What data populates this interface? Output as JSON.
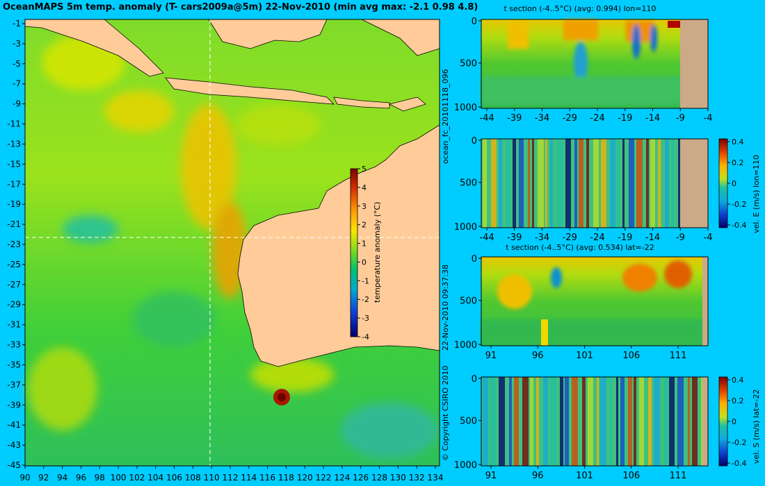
{
  "title": "OceanMAPS 5m temp. anomaly (T- cars2009a@5m) 22-Nov-2010 (min avg max: -2.1 0.98 4.8)",
  "map": {
    "lat_ticks": [
      "-1",
      "-3",
      "-5",
      "-7",
      "-9",
      "-11",
      "-13",
      "-15",
      "-17",
      "-19",
      "-21",
      "-23",
      "-25",
      "-27",
      "-29",
      "-31",
      "-33",
      "-35",
      "-37",
      "-39",
      "-41",
      "-43",
      "-45"
    ],
    "lon_ticks": [
      "90",
      "92",
      "94",
      "96",
      "98",
      "100",
      "102",
      "104",
      "106",
      "108",
      "110",
      "112",
      "114",
      "116",
      "118",
      "120",
      "122",
      "124",
      "126",
      "128",
      "130",
      "132",
      "134"
    ],
    "colorbar": {
      "label": "temperature anomaly (°C)",
      "ticks": [
        "5",
        "4",
        "3",
        "2",
        "1",
        "0",
        "-1",
        "-2",
        "-3",
        "-4"
      ]
    }
  },
  "sections": [
    {
      "title": "t section (-4..5°C) (avg: 0.994) lon=110",
      "y_ticks": [
        "0",
        "500",
        "1000"
      ],
      "x_ticks": [
        "-44",
        "-39",
        "-34",
        "-29",
        "-24",
        "-19",
        "-14",
        "-9",
        "-4"
      ]
    },
    {
      "title": "",
      "y_ticks": [
        "0",
        "500",
        "1000"
      ],
      "x_ticks": [
        "-44",
        "-39",
        "-34",
        "-29",
        "-24",
        "-19",
        "-14",
        "-9",
        "-4"
      ],
      "colorbar": {
        "label": "vel. E (m/s) lon=110",
        "ticks": [
          "0.4",
          "0.2",
          "0",
          "-0.2",
          "-0.4"
        ]
      }
    },
    {
      "title": "t section (-4..5°C) (avg: 0.534) lat=-22",
      "y_ticks": [
        "0",
        "500",
        "1000"
      ],
      "x_ticks": [
        "91",
        "96",
        "101",
        "106",
        "111"
      ]
    },
    {
      "title": "",
      "y_ticks": [
        "0",
        "500",
        "1000"
      ],
      "x_ticks": [
        "91",
        "96",
        "101",
        "106",
        "111"
      ],
      "colorbar": {
        "label": "vel. S (m/s) lat=-22",
        "ticks": [
          "0.4",
          "0.2",
          "0",
          "-0.2",
          "-0.4"
        ]
      }
    }
  ],
  "side_labels": {
    "run_id": "ocean_fc_20101118_096",
    "timestamp": "22-Nov-2010 09:37:38",
    "copyright": "© Copyright CSIRO 2010"
  }
}
